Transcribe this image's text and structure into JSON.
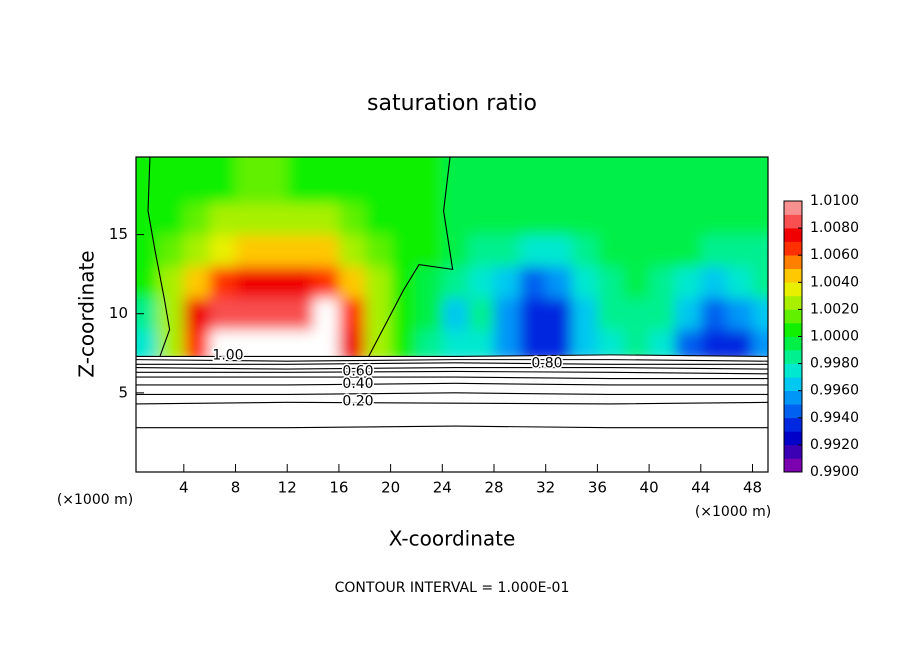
{
  "chart_data": {
    "type": "contour",
    "title": "saturation ratio",
    "xlabel": "X-coordinate",
    "ylabel": "Z-coordinate",
    "x_unit": "(×1000 m)",
    "y_unit": "(×1000 m)",
    "footer": "CONTOUR INTERVAL = 1.000E-01",
    "xlim": [
      0.3,
      49.2
    ],
    "ylim": [
      0,
      19.9
    ],
    "xticks": [
      4,
      8,
      12,
      16,
      20,
      24,
      28,
      32,
      36,
      40,
      44,
      48
    ],
    "yticks": [
      5,
      10,
      15
    ],
    "x": [
      1,
      3,
      5,
      7,
      9,
      11,
      13,
      15,
      17,
      19,
      21,
      23,
      25,
      27,
      29,
      31,
      33,
      35,
      37,
      39,
      41,
      43,
      45,
      47,
      49
    ],
    "y": [
      8,
      10,
      12,
      14,
      16,
      18
    ],
    "z": [
      [
        0.997,
        1.002,
        1.007,
        null,
        null,
        null,
        null,
        null,
        1.0075,
        1.002,
        1.0002,
        0.9985,
        0.9975,
        0.997,
        0.9955,
        0.993,
        0.993,
        0.996,
        0.9975,
        0.998,
        0.997,
        0.9945,
        0.9935,
        0.993,
        0.995
      ],
      [
        0.998,
        1.003,
        1.0075,
        1.0085,
        1.009,
        1.0085,
        1.009,
        null,
        1.007,
        1.0025,
        1.0004,
        0.999,
        0.9968,
        0.998,
        0.995,
        0.993,
        0.9935,
        0.996,
        0.998,
        0.9985,
        0.998,
        0.996,
        0.9945,
        0.995,
        0.9965
      ],
      [
        1.0005,
        1.002,
        1.004,
        1.0065,
        1.0075,
        1.0078,
        1.0075,
        1.007,
        1.005,
        1.002,
        1.0005,
        0.9995,
        0.9985,
        0.997,
        0.996,
        0.9945,
        0.995,
        0.997,
        0.998,
        0.999,
        0.9985,
        0.9975,
        0.996,
        0.997,
        0.998
      ],
      [
        1.001,
        1.0015,
        1.0025,
        1.0035,
        1.0045,
        1.0045,
        1.0045,
        1.004,
        1.003,
        1.0015,
        1.0006,
        1.0001,
        0.9994,
        0.998,
        0.998,
        0.997,
        0.997,
        0.998,
        0.999,
        0.9995,
        0.9992,
        0.999,
        0.998,
        0.998,
        0.9985
      ],
      [
        1.0005,
        1.001,
        1.0015,
        1.002,
        1.002,
        1.0025,
        1.0022,
        1.002,
        1.0015,
        1.001,
        1.0005,
        1.0003,
        0.9996,
        0.9992,
        0.999,
        0.999,
        0.999,
        0.9992,
        0.9995,
        0.9997,
        0.9996,
        0.9995,
        0.9992,
        0.999,
        0.9993
      ],
      [
        1.0005,
        1.0008,
        1.001,
        1.001,
        1.0012,
        1.0012,
        1.001,
        1.001,
        1.0008,
        1.0005,
        1.0003,
        1.0002,
        0.9998,
        0.9995,
        0.9995,
        0.9995,
        0.9995,
        0.9996,
        0.9997,
        0.9998,
        0.9998,
        0.9997,
        0.9997,
        0.9996,
        0.9997
      ]
    ],
    "clim": [
      0.99,
      1.01
    ],
    "colors": [
      "#7a00b0",
      "#3c00b4",
      "#0000c8",
      "#0028e0",
      "#0060f0",
      "#0096f8",
      "#00c8f0",
      "#00e8d0",
      "#00f090",
      "#00f048",
      "#10f000",
      "#60f000",
      "#a8f000",
      "#e8f000",
      "#ffc800",
      "#ff8000",
      "#ff3000",
      "#f00000",
      "#f85050",
      "#f89090"
    ],
    "colorbar_ticks": [
      {
        "value": 1.01,
        "label": "1.0100"
      },
      {
        "value": 1.008,
        "label": "1.0080"
      },
      {
        "value": 1.006,
        "label": "1.0060"
      },
      {
        "value": 1.004,
        "label": "1.0040"
      },
      {
        "value": 1.002,
        "label": "1.0020"
      },
      {
        "value": 1.0,
        "label": "1.0000"
      },
      {
        "value": 0.998,
        "label": "0.9980"
      },
      {
        "value": 0.996,
        "label": "0.9960"
      },
      {
        "value": 0.994,
        "label": "0.9940"
      },
      {
        "value": 0.992,
        "label": "0.9920"
      },
      {
        "value": 0.99,
        "label": "0.9900"
      }
    ],
    "contours": [
      {
        "value": 1.0,
        "label": "1.00",
        "x": [
          0.3,
          12,
          25,
          37,
          49.2
        ],
        "values": [
          7.3,
          7.3,
          7.3,
          7.4,
          7.3
        ]
      },
      {
        "value": 0.9,
        "x": [
          0.3,
          12,
          25,
          37,
          49.2
        ],
        "values": [
          7.1,
          7.0,
          7.1,
          7.1,
          7.0
        ]
      },
      {
        "value": 0.8,
        "label": "0.80",
        "x": [
          0.3,
          12,
          25,
          37,
          49.2
        ],
        "values": [
          6.8,
          6.8,
          6.9,
          6.8,
          6.8
        ]
      },
      {
        "value": 0.7,
        "x": [
          0.3,
          12,
          25,
          37,
          49.2
        ],
        "values": [
          6.6,
          6.5,
          6.6,
          6.6,
          6.5
        ]
      },
      {
        "value": 0.6,
        "label": "0.60",
        "x": [
          0.3,
          12,
          25,
          37,
          49.2
        ],
        "values": [
          6.3,
          6.3,
          6.35,
          6.3,
          6.2
        ]
      },
      {
        "value": 0.5,
        "x": [
          0.3,
          12,
          25,
          37,
          49.2
        ],
        "values": [
          6.0,
          6.0,
          6.0,
          5.9,
          5.9
        ]
      },
      {
        "value": 0.4,
        "label": "0.40",
        "x": [
          0.3,
          12,
          25,
          37,
          49.2
        ],
        "values": [
          5.5,
          5.5,
          5.6,
          5.5,
          5.5
        ]
      },
      {
        "value": 0.3,
        "x": [
          0.3,
          12,
          25,
          37,
          49.2
        ],
        "values": [
          4.9,
          4.9,
          5.0,
          4.9,
          4.9
        ]
      },
      {
        "value": 0.2,
        "label": "0.20",
        "x": [
          0.3,
          12,
          25,
          37,
          49.2
        ],
        "values": [
          4.3,
          4.4,
          4.35,
          4.3,
          4.4
        ]
      },
      {
        "value": 0.1,
        "x": [
          0.3,
          12,
          25,
          37,
          49.2
        ],
        "values": [
          2.8,
          2.8,
          2.9,
          2.8,
          2.8
        ]
      },
      {
        "value": 1.0,
        "x": [
          2.15,
          2.9,
          2.5,
          1.77,
          1.23,
          1.38
        ],
        "values": [
          7.3,
          9.0,
          10.9,
          14.0,
          16.5,
          19.9
        ]
      },
      {
        "value": 1.0,
        "x": [
          18.3,
          21.0,
          22.2,
          24.8,
          24.1,
          24.6
        ],
        "values": [
          7.3,
          11.5,
          13.1,
          12.8,
          16.5,
          19.9
        ]
      }
    ]
  }
}
